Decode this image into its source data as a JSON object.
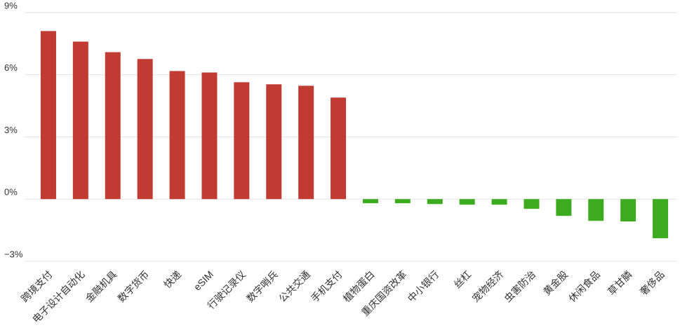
{
  "chart_data": {
    "type": "bar",
    "categories": [
      "跨境支付",
      "电子设计自动化",
      "金融机具",
      "数字货币",
      "快递",
      "eSIM",
      "行驶记录仪",
      "数字哨兵",
      "公共交通",
      "手机支付",
      "植物蛋白",
      "重庆国资改革",
      "中小银行",
      "丝杠",
      "宠物经济",
      "虫害防治",
      "黄金股",
      "休闲食品",
      "草甘膦",
      "奢侈品"
    ],
    "values": [
      8.11,
      7.6,
      7.09,
      6.76,
      6.18,
      6.11,
      5.64,
      5.54,
      5.47,
      4.9,
      -0.2,
      -0.2,
      -0.24,
      -0.27,
      -0.27,
      -0.47,
      -0.81,
      -1.05,
      -1.08,
      -1.89
    ],
    "colors": [
      "#c23b32",
      "#c23b32",
      "#c23b32",
      "#c23b32",
      "#c23b32",
      "#c23b32",
      "#c23b32",
      "#c23b32",
      "#c23b32",
      "#c23b32",
      "#3cab1f",
      "#3cab1f",
      "#3cab1f",
      "#3cab1f",
      "#3cab1f",
      "#3cab1f",
      "#3cab1f",
      "#3cab1f",
      "#3cab1f",
      "#3cab1f"
    ],
    "ylim": [
      -3,
      9
    ],
    "yticks": [
      {
        "value": -3,
        "label": "−3%"
      },
      {
        "value": 0,
        "label": "0%"
      },
      {
        "value": 3,
        "label": "3%"
      },
      {
        "value": 6,
        "label": "6%"
      },
      {
        "value": 9,
        "label": "9%"
      }
    ],
    "grid": true
  }
}
